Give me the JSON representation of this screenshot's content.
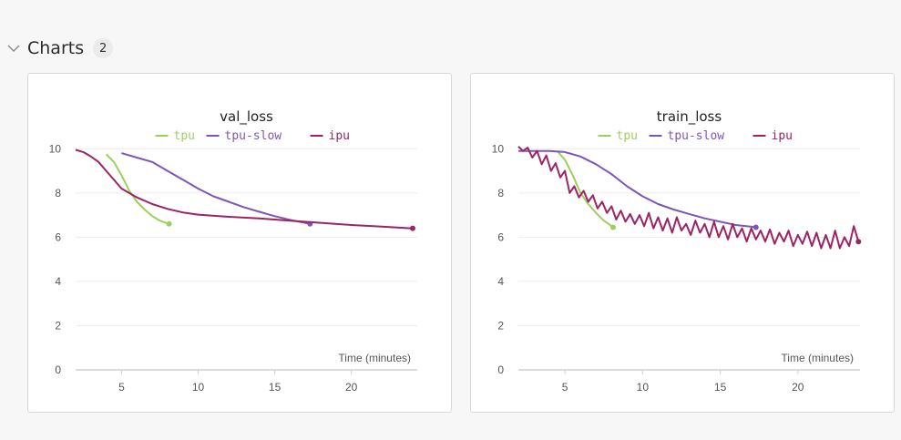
{
  "section": {
    "title": "Charts",
    "count": "2"
  },
  "icons": {
    "collapse": "chevron-down-icon"
  },
  "colors": {
    "tpu": "#9ccf5c",
    "tpu-slow": "#7c57b5",
    "ipu": "#9b2463",
    "grid": "#ececec",
    "axis": "#cfcfcf"
  },
  "chart_data": [
    {
      "type": "line",
      "title": "val_loss",
      "xlabel": "Time (minutes)",
      "ylabel": "",
      "xlim": [
        2,
        24.3
      ],
      "ylim": [
        0,
        10.3
      ],
      "xticks": [
        5,
        10,
        15,
        20
      ],
      "yticks": [
        0,
        2,
        4,
        6,
        8,
        10
      ],
      "grid": true,
      "legend": "top-center",
      "series": [
        {
          "name": "tpu",
          "x": [
            4.0,
            4.5,
            5.0,
            5.5,
            6.0,
            6.5,
            7.0,
            7.5,
            8.1
          ],
          "y": [
            9.75,
            9.4,
            8.8,
            8.1,
            7.6,
            7.25,
            6.95,
            6.75,
            6.6
          ]
        },
        {
          "name": "tpu-slow",
          "x": [
            5.0,
            6.0,
            7.0,
            8.0,
            9.0,
            10.0,
            11.0,
            12.0,
            13.0,
            14.0,
            15.0,
            16.0,
            17.3
          ],
          "y": [
            9.8,
            9.6,
            9.4,
            9.0,
            8.6,
            8.2,
            7.85,
            7.6,
            7.35,
            7.15,
            6.95,
            6.78,
            6.6
          ]
        },
        {
          "name": "ipu",
          "x": [
            2.0,
            2.5,
            3.0,
            3.5,
            4.0,
            5.0,
            6.0,
            7.0,
            8.0,
            9.0,
            10.0,
            12.0,
            14.0,
            16.0,
            18.0,
            20.0,
            22.0,
            24.0
          ],
          "y": [
            9.95,
            9.85,
            9.65,
            9.4,
            9.0,
            8.2,
            7.8,
            7.5,
            7.28,
            7.12,
            7.02,
            6.92,
            6.85,
            6.75,
            6.65,
            6.55,
            6.48,
            6.4
          ]
        }
      ]
    },
    {
      "type": "line",
      "title": "train_loss",
      "xlabel": "Time (minutes)",
      "ylabel": "",
      "xlim": [
        2,
        24.0
      ],
      "ylim": [
        0,
        10.3
      ],
      "xticks": [
        5,
        10,
        15,
        20
      ],
      "yticks": [
        0,
        2,
        4,
        6,
        8,
        10
      ],
      "grid": true,
      "legend": "top-center",
      "series": [
        {
          "name": "tpu",
          "x": [
            4.5,
            5.0,
            5.5,
            6.0,
            6.5,
            7.0,
            7.5,
            8.1
          ],
          "y": [
            9.9,
            9.5,
            8.8,
            8.0,
            7.5,
            7.1,
            6.75,
            6.45
          ]
        },
        {
          "name": "tpu-slow",
          "x": [
            2.0,
            3.0,
            4.0,
            5.0,
            6.0,
            7.0,
            8.0,
            9.0,
            10.0,
            11.0,
            12.0,
            13.0,
            14.0,
            15.0,
            16.0,
            17.3
          ],
          "y": [
            9.9,
            9.9,
            9.9,
            9.85,
            9.65,
            9.3,
            8.85,
            8.3,
            7.85,
            7.5,
            7.25,
            7.05,
            6.85,
            6.7,
            6.55,
            6.45
          ]
        },
        {
          "name": "ipu",
          "x": [
            2.0,
            2.3,
            2.6,
            2.9,
            3.2,
            3.5,
            3.8,
            4.1,
            4.4,
            4.7,
            5.0,
            5.3,
            5.6,
            5.9,
            6.2,
            6.5,
            6.8,
            7.1,
            7.4,
            7.7,
            8.0,
            8.3,
            8.6,
            8.9,
            9.2,
            9.5,
            9.8,
            10.1,
            10.4,
            10.7,
            11.0,
            11.3,
            11.6,
            11.9,
            12.2,
            12.5,
            12.8,
            13.1,
            13.4,
            13.7,
            14.0,
            14.3,
            14.6,
            14.9,
            15.2,
            15.5,
            15.8,
            16.1,
            16.4,
            16.7,
            17.0,
            17.3,
            17.6,
            17.9,
            18.2,
            18.5,
            18.8,
            19.1,
            19.4,
            19.7,
            20.0,
            20.3,
            20.6,
            20.9,
            21.2,
            21.5,
            21.8,
            22.1,
            22.4,
            22.7,
            23.0,
            23.3,
            23.6,
            23.9
          ],
          "y": [
            10.1,
            9.9,
            10.05,
            9.6,
            9.9,
            9.3,
            9.7,
            9.0,
            9.35,
            8.7,
            9.0,
            8.0,
            8.3,
            7.8,
            8.1,
            7.6,
            7.9,
            7.3,
            7.6,
            7.1,
            7.4,
            6.8,
            7.2,
            6.7,
            7.05,
            6.6,
            7.0,
            6.5,
            7.1,
            6.4,
            6.9,
            6.3,
            6.85,
            6.2,
            6.9,
            6.3,
            6.6,
            6.1,
            6.75,
            6.2,
            6.6,
            6.0,
            6.7,
            6.0,
            6.5,
            5.9,
            6.6,
            6.0,
            6.4,
            5.8,
            6.4,
            5.9,
            6.3,
            5.8,
            6.35,
            5.7,
            6.2,
            5.8,
            6.3,
            5.6,
            6.1,
            5.7,
            6.25,
            5.6,
            6.2,
            5.5,
            6.1,
            5.5,
            6.3,
            5.5,
            6.0,
            5.6,
            6.5,
            5.8
          ]
        }
      ]
    }
  ]
}
